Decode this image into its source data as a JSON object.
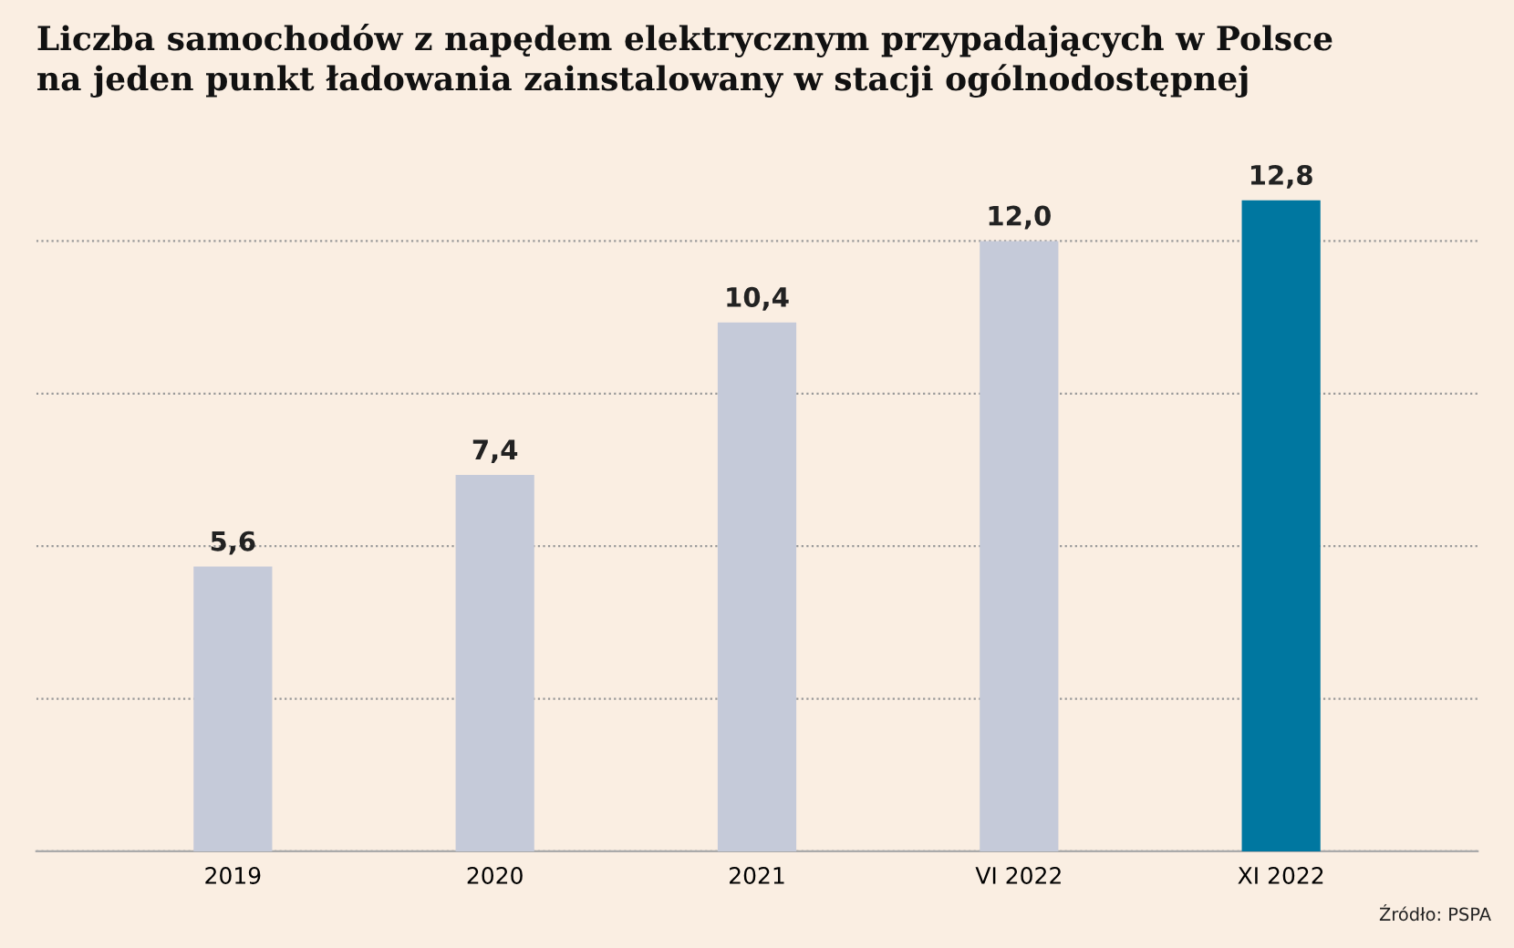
{
  "chart_data": {
    "type": "bar",
    "title": "Liczba samochodów z napędem elektrycznym przypadających w Polsce\nna jeden punkt ładowania zainstalowany w stacji ogólnodostępnej",
    "categories": [
      "2019",
      "2020",
      "2021",
      "VI 2022",
      "XI 2022"
    ],
    "values": [
      5.6,
      7.4,
      10.4,
      12.0,
      12.8
    ],
    "value_labels": [
      "5,6",
      "7,4",
      "10,4",
      "12,0",
      "12,8"
    ],
    "colors": [
      "#c5cad9",
      "#c5cad9",
      "#c5cad9",
      "#c5cad9",
      "#0077a0"
    ],
    "yticks": [
      {
        "value": 0,
        "label": null
      },
      {
        "value": 3,
        "label": null
      },
      {
        "value": 6,
        "label": null
      },
      {
        "value": 9,
        "label": null
      },
      {
        "value": 12,
        "label": null
      }
    ],
    "tick_labels": "x",
    "grid": "y",
    "annotations": [
      "Źródło: PSPA"
    ]
  }
}
